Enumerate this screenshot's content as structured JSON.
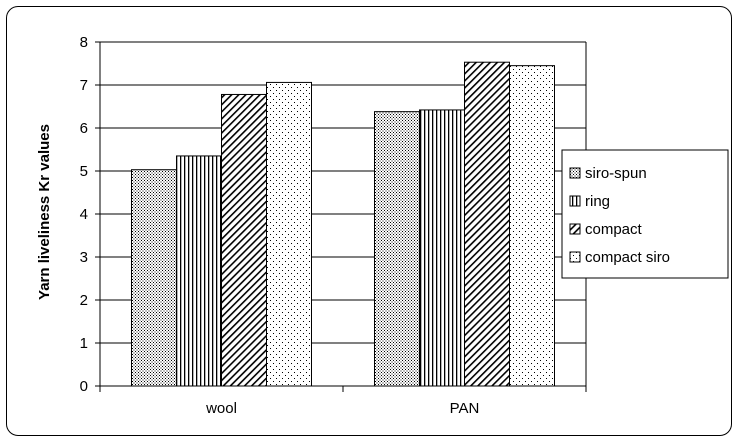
{
  "chart_data": {
    "type": "bar",
    "title": "",
    "xlabel": "",
    "ylabel": "Yarn liveliness Kr values",
    "categories": [
      "wool",
      "PAN"
    ],
    "ylim": [
      0,
      8
    ],
    "yticks": [
      "0",
      "1",
      "2",
      "3",
      "4",
      "5",
      "6",
      "7",
      "8"
    ],
    "grid": true,
    "legend_position": "right",
    "series": [
      {
        "name": "siro-spun",
        "values": [
          5.03,
          6.38
        ],
        "pattern": "fine-dots"
      },
      {
        "name": "ring",
        "values": [
          5.35,
          6.42
        ],
        "pattern": "vertical-lines"
      },
      {
        "name": "compact",
        "values": [
          6.78,
          7.53
        ],
        "pattern": "diagonal-lines"
      },
      {
        "name": "compact siro",
        "values": [
          7.06,
          7.45
        ],
        "pattern": "sparse-dots"
      }
    ]
  }
}
